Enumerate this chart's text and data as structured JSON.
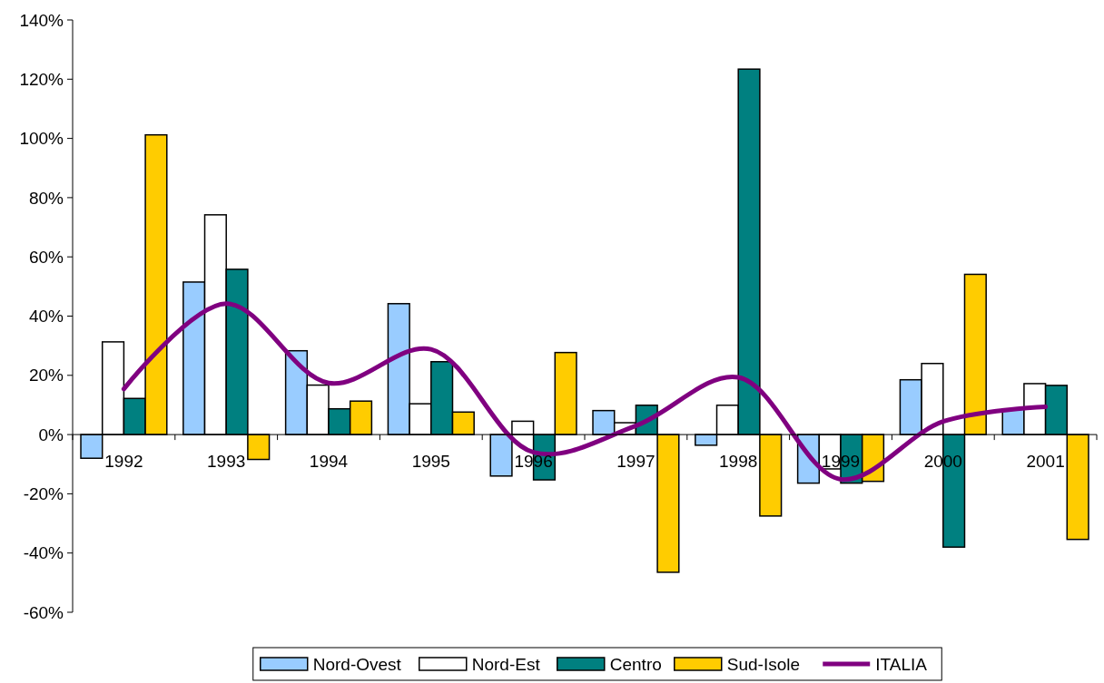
{
  "chart_data": {
    "type": "bar",
    "categories": [
      "1992",
      "1993",
      "1994",
      "1995",
      "1996",
      "1997",
      "1998",
      "1999",
      "2000",
      "2001"
    ],
    "series": [
      {
        "name": "Nord-Ovest",
        "color": "#99ccff",
        "values": [
          -8,
          51.5,
          28.3,
          44.2,
          -14,
          8.1,
          -3.6,
          -16.4,
          18.5,
          8.7
        ]
      },
      {
        "name": "Nord-Est",
        "color": "#ffffff",
        "values": [
          31.3,
          74.2,
          16.7,
          10.4,
          4.5,
          4,
          9.9,
          -11.6,
          24,
          17.2
        ]
      },
      {
        "name": "Centro",
        "color": "#008080",
        "values": [
          12.2,
          55.8,
          8.7,
          24.6,
          -15.3,
          9.9,
          123.4,
          -16.4,
          -38,
          16.6
        ]
      },
      {
        "name": "Sud-Isole",
        "color": "#ffcc00",
        "values": [
          101.2,
          -8.4,
          11.3,
          7.6,
          27.7,
          -46.5,
          -27.5,
          -15.8,
          54.1,
          -35.4
        ]
      },
      {
        "name": "ITALIA",
        "color": "#800080",
        "type": "line",
        "values": [
          15.4,
          44.2,
          17.4,
          28.8,
          -6,
          3,
          19.3,
          -15.1,
          4.4,
          9.4
        ]
      }
    ],
    "ylim": [
      -60,
      140
    ],
    "yticks": [
      {
        "value": -60,
        "label": "-60%"
      },
      {
        "value": -40,
        "label": "-40%"
      },
      {
        "value": -20,
        "label": "-20%"
      },
      {
        "value": 0,
        "label": "0%"
      },
      {
        "value": 20,
        "label": "20%"
      },
      {
        "value": 40,
        "label": "40%"
      },
      {
        "value": 60,
        "label": "60%"
      },
      {
        "value": 80,
        "label": "80%"
      },
      {
        "value": 100,
        "label": "100%"
      },
      {
        "value": 120,
        "label": "120%"
      },
      {
        "value": 140,
        "label": "140%"
      }
    ],
    "legend": "bottom",
    "grid": false
  }
}
